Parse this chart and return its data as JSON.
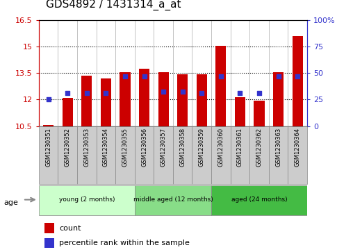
{
  "title": "GDS4892 / 1431314_a_at",
  "samples": [
    "GSM1230351",
    "GSM1230352",
    "GSM1230353",
    "GSM1230354",
    "GSM1230355",
    "GSM1230356",
    "GSM1230357",
    "GSM1230358",
    "GSM1230359",
    "GSM1230360",
    "GSM1230361",
    "GSM1230362",
    "GSM1230363",
    "GSM1230364"
  ],
  "bar_heights": [
    10.55,
    12.1,
    13.35,
    13.2,
    13.55,
    13.75,
    13.55,
    13.45,
    13.45,
    15.05,
    12.15,
    11.95,
    13.55,
    15.6
  ],
  "percentile_left_vals": [
    12.0,
    12.35,
    12.35,
    12.35,
    13.3,
    13.3,
    12.45,
    12.45,
    12.35,
    13.3,
    12.35,
    12.35,
    13.3,
    13.3
  ],
  "ylim_left": [
    10.5,
    16.5
  ],
  "ylim_right": [
    0,
    100
  ],
  "yticks_left": [
    10.5,
    12.0,
    13.5,
    15.0,
    16.5
  ],
  "ytick_labels_left": [
    "10.5",
    "12",
    "13.5",
    "15",
    "16.5"
  ],
  "yticks_right": [
    0,
    25,
    50,
    75,
    100
  ],
  "ytick_labels_right": [
    "0",
    "25",
    "50",
    "75",
    "100%"
  ],
  "bar_color": "#cc0000",
  "percentile_color": "#3333cc",
  "bar_bottom": 10.5,
  "hlines": [
    12.0,
    13.5,
    15.0
  ],
  "groups": [
    {
      "label": "young (2 months)",
      "start": 0,
      "end": 5,
      "color": "#ccffcc"
    },
    {
      "label": "middle aged (12 months)",
      "start": 5,
      "end": 9,
      "color": "#88dd88"
    },
    {
      "label": "aged (24 months)",
      "start": 9,
      "end": 14,
      "color": "#44bb44"
    }
  ],
  "age_label": "age",
  "legend_count_label": "count",
  "legend_percentile_label": "percentile rank within the sample",
  "axis_color_left": "#cc0000",
  "axis_color_right": "#3333cc",
  "title_fontsize": 11,
  "tick_fontsize": 8,
  "bar_width": 0.55,
  "sample_box_color": "#cccccc",
  "sample_box_edge": "#888888"
}
